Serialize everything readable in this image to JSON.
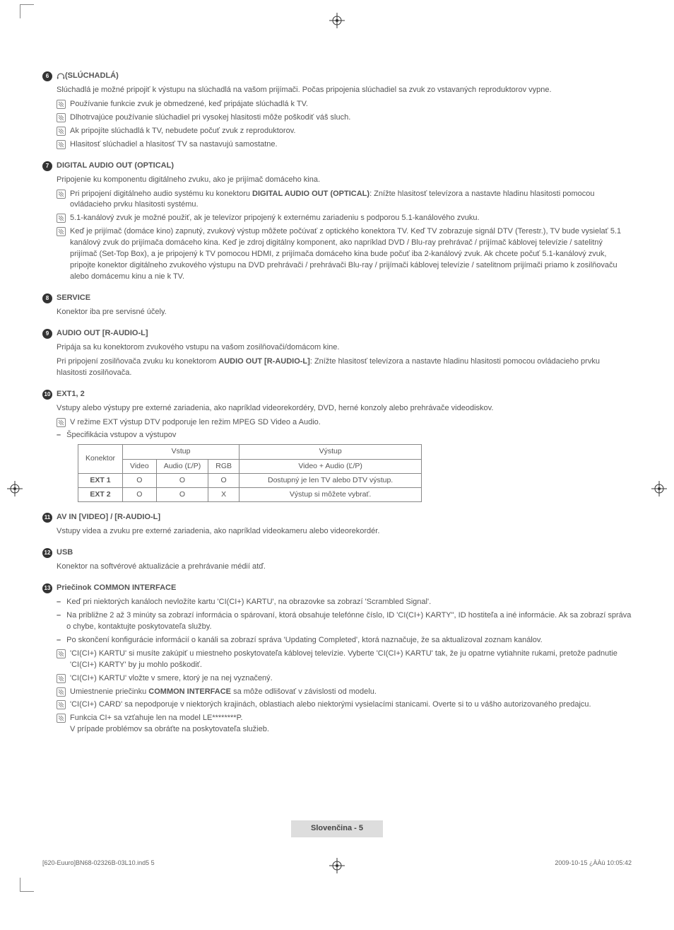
{
  "sections": {
    "s6": {
      "num": "6",
      "title_prefix_icon": "headphones",
      "title": "(SLÚCHADLÁ)",
      "intro": "Slúchadlá je možné pripojiť k výstupu na slúchadlá na vašom prijímači. Počas pripojenia slúchadiel sa zvuk zo vstavaných reproduktorov vypne.",
      "notes": [
        "Používanie funkcie zvuk je obmedzené, keď pripájate slúchadlá k TV.",
        "Dlhotrvajúce používanie slúchadiel pri vysokej hlasitosti môže poškodiť váš sluch.",
        "Ak pripojíte slúchadlá k TV, nebudete počuť zvuk z reproduktorov.",
        "Hlasitosť slúchadiel a hlasitosť TV sa nastavujú samostatne."
      ]
    },
    "s7": {
      "num": "7",
      "title": "DIGITAL AUDIO OUT (OPTICAL)",
      "intro": "Pripojenie ku komponentu digitálneho zvuku, ako je prijímač domáceho kina.",
      "notes": [
        "Pri pripojení digitálneho audio systému ku konektoru <b>DIGITAL AUDIO OUT (OPTICAL)</b>: Znížte hlasitosť televízora a nastavte hladinu hlasitosti pomocou ovládacieho prvku hlasitosti systému.",
        "5.1-kanálový zvuk je možné použiť, ak je televízor pripojený k externému zariadeniu s podporou 5.1-kanálového zvuku.",
        "Keď je prijímač (domáce kino) zapnutý, zvukový výstup môžete počúvať z optického konektora TV. Keď TV zobrazuje signál DTV (Terestr.), TV bude vysielať 5.1 kanálový zvuk do prijímača domáceho kina. Keď je zdroj digitálny komponent, ako napríklad DVD / Blu-ray prehrávač / prijímač káblovej televízie / satelitný prijímač (Set-Top Box), a je pripojený k TV pomocou HDMI, z prijímača domáceho kina bude počuť iba 2-kanálový zvuk. Ak chcete počuť 5.1-kanálový zvuk, pripojte konektor digitálneho zvukového výstupu na DVD prehrávači / prehrávači Blu-ray / prijímači káblovej televízie / satelitnom prijímači priamo k zosilňovaču alebo domácemu kinu a nie k TV."
      ]
    },
    "s8": {
      "num": "8",
      "title": "SERVICE",
      "intro": "Konektor iba pre servisné účely."
    },
    "s9": {
      "num": "9",
      "title": "AUDIO OUT [R-AUDIO-L]",
      "intro": "Pripája sa ku konektorom zvukového vstupu na vašom zosilňovači/domácom kine.",
      "body2": "Pri pripojení zosilňovača zvuku ku konektorom <b>AUDIO OUT [R-AUDIO-L]</b>: Znížte hlasitosť televízora a nastavte hladinu hlasitosti pomocou ovládacieho prvku hlasitosti zosilňovača."
    },
    "s10": {
      "num": "10",
      "title": "EXT1, 2",
      "intro": "Vstupy alebo výstupy pre externé zariadenia, ako napríklad videorekordéry, DVD, herné konzoly alebo prehrávače videodiskov.",
      "notes": [
        "V režime EXT výstup DTV podporuje len režim MPEG SD Video a Audio."
      ],
      "dashes": [
        "Špecifikácia vstupov a výstupov"
      ],
      "table": {
        "head_konektor": "Konektor",
        "head_vstup": "Vstup",
        "head_vystup": "Výstup",
        "sub_video": "Video",
        "sub_audio": "Audio (Ľ/P)",
        "sub_rgb": "RGB",
        "sub_out": "Video + Audio (Ľ/P)",
        "rows": [
          {
            "name": "EXT 1",
            "video": "O",
            "audio": "O",
            "rgb": "O",
            "out": "Dostupný je len TV alebo DTV výstup."
          },
          {
            "name": "EXT 2",
            "video": "O",
            "audio": "O",
            "rgb": "X",
            "out": "Výstup si môžete vybrať."
          }
        ]
      }
    },
    "s11": {
      "num": "11",
      "title": "AV IN [VIDEO] / [R-AUDIO-L]",
      "intro": "Vstupy videa a zvuku pre externé zariadenia, ako napríklad videokameru alebo videorekordér."
    },
    "s12": {
      "num": "12",
      "title": "USB",
      "intro": "Konektor na softvérové aktualizácie a prehrávanie médií atď."
    },
    "s13": {
      "num": "13",
      "title": "Priečinok COMMON INTERFACE",
      "dashes": [
        "Keď pri niektorých kanáloch nevložíte kartu 'CI(CI+) KARTU', na obrazovke sa zobrazí 'Scrambled Signal'.",
        "Na približne 2 až 3 minúty sa zobrazí informácia o spárovaní, ktorá obsahuje telefónne číslo, ID 'CI(CI+) KARTY\", ID hostiteľa a iné informácie. Ak sa zobrazí správa o chybe, kontaktujte poskytovateľa služby.",
        "Po skončení konfigurácie informácií o kanáli sa zobrazí správa 'Updating Completed', ktorá naznačuje, že sa aktualizoval zoznam kanálov."
      ],
      "notes": [
        "'CI(CI+) KARTU' si musíte zakúpiť u miestneho poskytovateľa káblovej televízie. Vyberte 'CI(CI+) KARTU' tak, že ju opatrne vytiahnite rukami, pretože padnutie 'CI(CI+) KARTY' by ju mohlo poškodiť.",
        "'CI(CI+) KARTU' vložte v smere, ktorý je na nej vyznačený.",
        "Umiestnenie priečinku <b>COMMON INTERFACE</b> sa môže odlišovať v závislosti od modelu.",
        "'CI(CI+) CARD' sa nepodporuje v niektorých krajinách, oblastiach alebo niektorými vysielacími stanicami. Overte si to u vášho autorizovaného predajcu.",
        "Funkcia CI+ sa vzťahuje len na model LE********P.<br>V prípade problémov sa obráťte na poskytovateľa služieb."
      ]
    }
  },
  "footer": {
    "page_label": "Slovenčina - 5",
    "left": "[620-Euuro]BN68-02326B-03L10.ind5   5",
    "right": "2009-10-15   ¿ÀÀü 10:05:42"
  }
}
